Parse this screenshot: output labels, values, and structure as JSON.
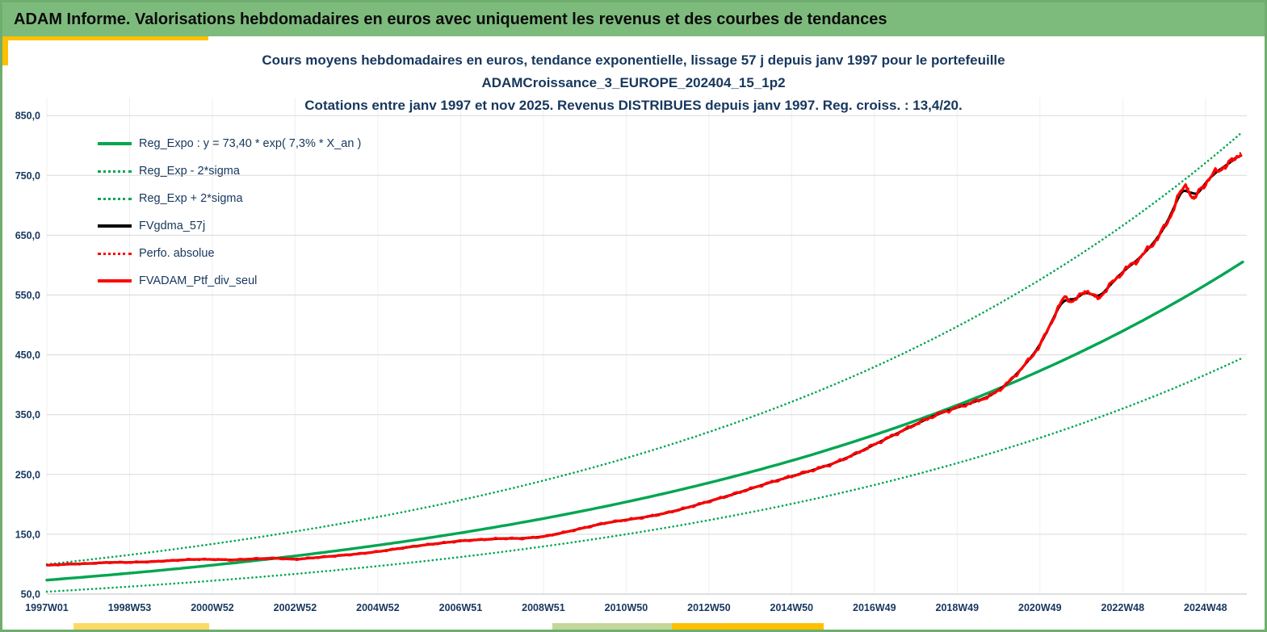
{
  "header": {
    "title": "ADAM Informe. Valorisations hebdomadaires en euros avec uniquement les revenus et des courbes de tendances"
  },
  "colors": {
    "header_bg": "#7DBB7D",
    "page_border": "#6FAE6F",
    "green": "#00A651",
    "red": "#FF0000",
    "black": "#000000",
    "text_navy": "#17375D",
    "grid": "#D9D9D9",
    "grid_vertical": "#EFEFEF",
    "axis_line": "#BFBFBF",
    "accent_gold": "#FFC000",
    "accent_yellow": "#FFD966",
    "accent_light_green": "#C4D79B"
  },
  "chart_data": {
    "type": "line",
    "title_lines": [
      "Cours moyens hebdomadaires en euros, tendance exponentielle, lissage 57 j depuis janv 1997 pour le portefeuille",
      "ADAMCroissance_3_EUROPE_202404_15_1p2",
      "Cotations entre janv 1997 et nov 2025. Revenus DISTRIBUES depuis janv 1997. Reg. croiss. : 13,4/20."
    ],
    "legend": [
      {
        "label": "Reg_Expo : y = 73,40 * exp( 7,3% *  X_an )",
        "color": "#00A651",
        "style": "solid"
      },
      {
        "label": "Reg_Exp - 2*sigma",
        "color": "#00A651",
        "style": "dotted"
      },
      {
        "label": "Reg_Exp + 2*sigma",
        "color": "#00A651",
        "style": "dotted"
      },
      {
        "label": "FVgdma_57j",
        "color": "#000000",
        "style": "solid"
      },
      {
        "label": "Perfo. absolue",
        "color": "#FF0000",
        "style": "dotted"
      },
      {
        "label": "FVADAM_Ptf_div_seul",
        "color": "#FF0000",
        "style": "solid"
      }
    ],
    "x_axis": {
      "min": 0,
      "max": 29.0,
      "unit": "years_since_1997W01",
      "tick_positions": [
        0,
        2,
        4,
        6,
        8,
        10,
        12,
        14,
        16,
        18,
        20,
        22,
        24,
        26,
        28
      ],
      "tick_labels": [
        "1997W01",
        "1998W53",
        "2000W52",
        "2002W52",
        "2004W52",
        "2006W51",
        "2008W51",
        "2010W50",
        "2012W50",
        "2014W50",
        "2016W49",
        "2018W49",
        "2020W49",
        "2022W48",
        "2024W48"
      ]
    },
    "y_axis": {
      "min": 50,
      "max": 880,
      "tick_values": [
        50,
        150,
        250,
        350,
        450,
        550,
        650,
        750,
        850
      ],
      "tick_labels": [
        "50,0",
        "150,0",
        "250,0",
        "350,0",
        "450,0",
        "550,0",
        "650,0",
        "750,0",
        "850,0"
      ]
    },
    "regression": {
      "a": 73.4,
      "growth_rate": 0.073,
      "band_factor": 1.36,
      "formula": "y = 73,40 * exp( 7,3% * X_an )",
      "reg_croiss": "13,4/20"
    },
    "smoothed_series": {
      "name": "FVgdma_57j",
      "smoothing_window_days": 57
    },
    "price_series": {
      "name": "FVADAM_Ptf_div_seul",
      "points": [
        [
          0,
          98
        ],
        [
          0.5,
          100
        ],
        [
          1,
          101
        ],
        [
          1.5,
          103
        ],
        [
          2,
          103
        ],
        [
          2.5,
          104
        ],
        [
          3,
          106
        ],
        [
          3.5,
          108
        ],
        [
          4,
          108
        ],
        [
          4.5,
          107
        ],
        [
          5,
          109
        ],
        [
          5.5,
          110
        ],
        [
          6,
          108
        ],
        [
          6.5,
          111
        ],
        [
          7,
          114
        ],
        [
          7.5,
          117
        ],
        [
          8,
          121
        ],
        [
          8.5,
          126
        ],
        [
          9,
          131
        ],
        [
          9.5,
          135
        ],
        [
          10,
          139
        ],
        [
          10.5,
          141
        ],
        [
          11,
          143
        ],
        [
          11.5,
          143
        ],
        [
          12,
          146
        ],
        [
          12.5,
          153
        ],
        [
          13,
          161
        ],
        [
          13.5,
          169
        ],
        [
          14,
          174
        ],
        [
          14.5,
          179
        ],
        [
          15,
          186
        ],
        [
          15.5,
          195
        ],
        [
          16,
          205
        ],
        [
          16.5,
          215
        ],
        [
          17,
          226
        ],
        [
          17.5,
          237
        ],
        [
          18,
          247
        ],
        [
          18.5,
          257
        ],
        [
          19,
          268
        ],
        [
          19.5,
          283
        ],
        [
          20,
          300
        ],
        [
          20.5,
          317
        ],
        [
          21,
          334
        ],
        [
          21.5,
          350
        ],
        [
          22,
          362
        ],
        [
          22.4,
          371
        ],
        [
          22.8,
          381
        ],
        [
          23.2,
          401
        ],
        [
          23.6,
          430
        ],
        [
          24,
          465
        ],
        [
          24.3,
          508
        ],
        [
          24.6,
          549
        ],
        [
          24.8,
          537
        ],
        [
          25.1,
          559
        ],
        [
          25.4,
          543
        ],
        [
          25.7,
          567
        ],
        [
          26,
          589
        ],
        [
          26.4,
          611
        ],
        [
          26.8,
          641
        ],
        [
          27.1,
          673
        ],
        [
          27.35,
          716
        ],
        [
          27.55,
          737
        ],
        [
          27.7,
          706
        ],
        [
          27.9,
          729
        ],
        [
          28.2,
          753
        ],
        [
          28.5,
          767
        ],
        [
          28.75,
          779
        ],
        [
          28.9,
          793
        ]
      ]
    }
  }
}
